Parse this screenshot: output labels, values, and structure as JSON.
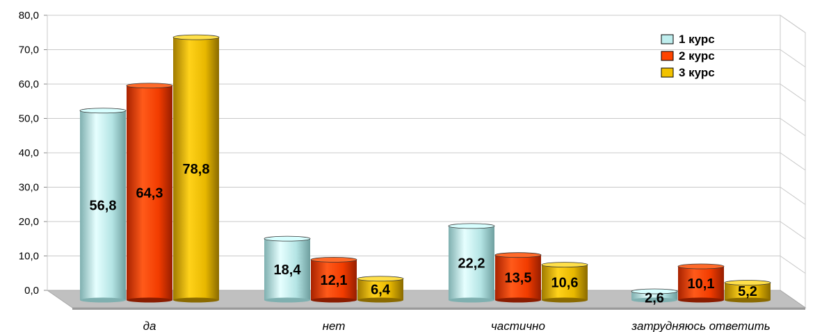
{
  "chart_data": {
    "type": "bar",
    "categories": [
      "да",
      "нет",
      "частично",
      "затрудняюсь ответить"
    ],
    "series": [
      {
        "name": "1 курс",
        "values": [
          56.8,
          18.4,
          22.2,
          2.6
        ],
        "labels": [
          "56,8",
          "18,4",
          "22,2",
          "2,6"
        ],
        "color": "#bfeeee"
      },
      {
        "name": "2 курс",
        "values": [
          64.3,
          12.1,
          13.5,
          10.1
        ],
        "labels": [
          "64,3",
          "12,1",
          "13,5",
          "10,1"
        ],
        "color": "#ff4400"
      },
      {
        "name": "3 курс",
        "values": [
          78.8,
          6.4,
          10.6,
          5.2
        ],
        "labels": [
          "78,8",
          "6,4",
          "10,6",
          "5,2"
        ],
        "color": "#f2c200"
      }
    ],
    "yticks": [
      "0,0",
      "10,0",
      "20,0",
      "30,0",
      "40,0",
      "50,0",
      "60,0",
      "70,0",
      "80,0"
    ],
    "ylim": [
      0,
      80
    ],
    "grid": true,
    "legend": "top-right"
  }
}
